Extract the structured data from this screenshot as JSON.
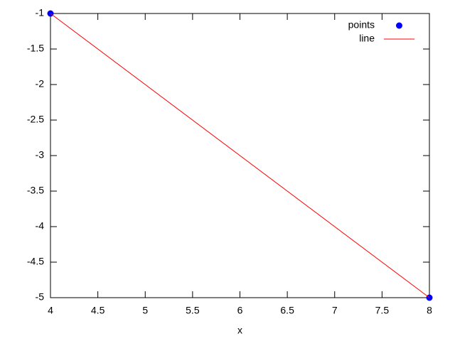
{
  "chart_data": {
    "type": "line",
    "x_label": "x",
    "x": [
      4,
      8
    ],
    "series": [
      {
        "name": "points",
        "color": "#0000ff",
        "style": "points",
        "values": [
          -1,
          -5
        ]
      },
      {
        "name": "line",
        "color": "#ff0000",
        "style": "line",
        "values": [
          -1,
          -5
        ]
      }
    ],
    "xlim": [
      4,
      8
    ],
    "xticks": [
      4,
      4.5,
      5,
      5.5,
      6,
      6.5,
      7,
      7.5,
      8
    ],
    "ylim": [
      -5,
      -1
    ],
    "yticks": [
      -5,
      -4.5,
      -4,
      -3.5,
      -3,
      -2.5,
      -2,
      -1.5,
      -1
    ],
    "grid": false,
    "legend": "top-right"
  }
}
